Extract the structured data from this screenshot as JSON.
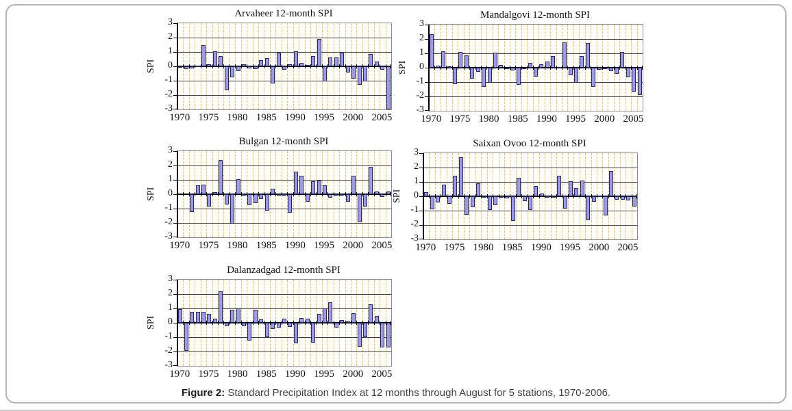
{
  "figure": {
    "caption_label": "Figure 2:",
    "caption_text": " Standard Precipitation Index at 12 months through August for 5 stations, 1970-2006."
  },
  "style": {
    "bar_fill": "#9a9ae8",
    "bar_border": "#26266b",
    "vgrid_color": "#f6b94d",
    "hgrid_color": "#3d3d3d",
    "axis_color": "#000000",
    "page_border": "#b3b3b3"
  },
  "chart_data": [
    {
      "type": "bar",
      "title": "Arvaheer 12-month SPI",
      "ylabel": "SPI",
      "ylim": [
        -3,
        3
      ],
      "y_ticks": [
        3,
        2,
        1,
        0,
        -1,
        -2,
        -3
      ],
      "x_tick_labels": [
        "1970",
        "1975",
        "1980",
        "1985",
        "1990",
        "1995",
        "2000",
        "2005"
      ],
      "grid": "horizontal solid, vertical dashed yearly",
      "legend": "none",
      "categories": [
        1970,
        1971,
        1972,
        1973,
        1974,
        1975,
        1976,
        1977,
        1978,
        1979,
        1980,
        1981,
        1982,
        1983,
        1984,
        1985,
        1986,
        1987,
        1988,
        1989,
        1990,
        1991,
        1992,
        1993,
        1994,
        1995,
        1996,
        1997,
        1998,
        1999,
        2000,
        2001,
        2002,
        2003,
        2004,
        2005,
        2006
      ],
      "values": [
        -0.1,
        -0.2,
        -0.15,
        0.05,
        1.5,
        0.15,
        1.05,
        0.7,
        -1.65,
        -0.75,
        -0.35,
        0.15,
        -0.15,
        -0.2,
        0.45,
        0.55,
        -1.2,
        0.95,
        -0.25,
        0.15,
        1.05,
        0.25,
        0.1,
        0.7,
        1.9,
        -1.05,
        0.6,
        0.6,
        0.95,
        -0.45,
        -0.85,
        -1.3,
        -1.05,
        0.85,
        0.35,
        -0.25,
        -3.0
      ]
    },
    {
      "type": "bar",
      "title": "Mandalgovi 12-month SPI",
      "ylabel": "SPI",
      "ylim": [
        -3,
        3
      ],
      "y_ticks": [
        3,
        2,
        1,
        0,
        -1,
        -2,
        -3
      ],
      "x_tick_labels": [
        "1970",
        "1975",
        "1980",
        "1985",
        "1990",
        "1995",
        "2000",
        "2005"
      ],
      "grid": "horizontal solid, vertical dashed yearly",
      "legend": "none",
      "categories": [
        1970,
        1971,
        1972,
        1973,
        1974,
        1975,
        1976,
        1977,
        1978,
        1979,
        1980,
        1981,
        1982,
        1983,
        1984,
        1985,
        1986,
        1987,
        1988,
        1989,
        1990,
        1991,
        1992,
        1993,
        1994,
        1995,
        1996,
        1997,
        1998,
        1999,
        2000,
        2001,
        2002,
        2003,
        2004,
        2005,
        2006
      ],
      "values": [
        2.35,
        0.15,
        1.15,
        0.1,
        -1.15,
        1.1,
        0.85,
        -0.75,
        -0.3,
        -1.35,
        -1.05,
        1.05,
        0.2,
        -0.1,
        -0.2,
        -1.2,
        -0.1,
        0.35,
        -0.6,
        0.25,
        0.45,
        0.8,
        0.05,
        1.75,
        -0.5,
        -1.05,
        0.8,
        1.7,
        -1.35,
        -0.15,
        -0.1,
        -0.25,
        -0.45,
        1.1,
        -0.65,
        -1.65,
        -1.9
      ]
    },
    {
      "type": "bar",
      "title": "Bulgan 12-month SPI",
      "ylabel": "SPI",
      "ylim": [
        -3,
        3
      ],
      "y_ticks": [
        3,
        2,
        1,
        0,
        -1,
        -2,
        -3
      ],
      "x_tick_labels": [
        "1970",
        "1975",
        "1980",
        "1985",
        "1990",
        "1995",
        "2000",
        "2005"
      ],
      "grid": "horizontal solid, vertical dashed yearly",
      "legend": "none",
      "categories": [
        1970,
        1971,
        1972,
        1973,
        1974,
        1975,
        1976,
        1977,
        1978,
        1979,
        1980,
        1981,
        1982,
        1983,
        1984,
        1985,
        1986,
        1987,
        1988,
        1989,
        1990,
        1991,
        1992,
        1993,
        1994,
        1995,
        1996,
        1997,
        1998,
        1999,
        2000,
        2001,
        2002,
        2003,
        2004,
        2005,
        2006
      ],
      "values": [
        0,
        0,
        -1.25,
        0.6,
        0.65,
        -0.85,
        0.15,
        2.4,
        -0.7,
        -2.05,
        1.05,
        -0.1,
        -0.75,
        -0.6,
        -0.35,
        -1.15,
        0.4,
        -0.05,
        -0.05,
        -1.3,
        1.55,
        1.3,
        -0.5,
        0.9,
        0.95,
        0.6,
        -0.25,
        -0.05,
        -0.05,
        -0.5,
        1.3,
        -1.95,
        -0.85,
        1.9,
        0.2,
        -0.2,
        0.2
      ]
    },
    {
      "type": "bar",
      "title": "Saixan Ovoo 12-month SPI",
      "ylabel": "SPI",
      "ylim": [
        -3,
        3
      ],
      "y_ticks": [
        3,
        2,
        1,
        0,
        -1,
        -2,
        -3
      ],
      "x_tick_labels": [
        "1970",
        "1975",
        "1980",
        "1985",
        "1990",
        "1995",
        "2000",
        "2005"
      ],
      "grid": "horizontal solid, vertical dashed yearly",
      "legend": "none",
      "categories": [
        1970,
        1971,
        1972,
        1973,
        1974,
        1975,
        1976,
        1977,
        1978,
        1979,
        1980,
        1981,
        1982,
        1983,
        1984,
        1985,
        1986,
        1987,
        1988,
        1989,
        1990,
        1991,
        1992,
        1993,
        1994,
        1995,
        1996,
        1997,
        1998,
        1999,
        2000,
        2001,
        2002,
        2003,
        2004,
        2005,
        2006
      ],
      "values": [
        0.3,
        -0.9,
        -0.45,
        0.8,
        -0.5,
        1.45,
        2.7,
        -1.3,
        -0.75,
        0.9,
        -0.05,
        -0.95,
        -0.6,
        -0.05,
        -0.15,
        -1.7,
        1.3,
        -0.35,
        -0.95,
        0.7,
        0.2,
        -0.1,
        -0.05,
        1.45,
        -0.85,
        1.05,
        0.55,
        1.1,
        -1.65,
        -0.4,
        0.05,
        -1.35,
        1.75,
        -0.25,
        -0.25,
        -0.3,
        -0.7
      ]
    },
    {
      "type": "bar",
      "title": "Dalanzadgad 12-month SPI",
      "ylabel": "SPI",
      "ylim": [
        -3,
        3
      ],
      "y_ticks": [
        3,
        2,
        1,
        0,
        -1,
        -2,
        -3
      ],
      "x_tick_labels": [
        "1970",
        "1975",
        "1980",
        "1985",
        "1990",
        "1995",
        "2000",
        "2005"
      ],
      "grid": "horizontal solid, vertical dashed yearly",
      "legend": "none",
      "categories": [
        1970,
        1971,
        1972,
        1973,
        1974,
        1975,
        1976,
        1977,
        1978,
        1979,
        1980,
        1981,
        1982,
        1983,
        1984,
        1985,
        1986,
        1987,
        1988,
        1989,
        1990,
        1991,
        1992,
        1993,
        1994,
        1995,
        1996,
        1997,
        1998,
        1999,
        2000,
        2001,
        2002,
        2003,
        2004,
        2005,
        2006
      ],
      "values": [
        0.95,
        -1.95,
        0.75,
        0.75,
        0.75,
        0.6,
        0.3,
        2.2,
        -0.25,
        0.9,
        1.0,
        -0.25,
        -1.25,
        0.9,
        0.25,
        -1.0,
        -0.45,
        -0.35,
        0.3,
        -0.3,
        -1.45,
        0.35,
        0.3,
        -1.4,
        0.6,
        1.0,
        1.45,
        -0.35,
        0.2,
        0.1,
        0.65,
        -1.65,
        -1.0,
        1.3,
        0.5,
        -1.7,
        -1.7
      ]
    }
  ]
}
